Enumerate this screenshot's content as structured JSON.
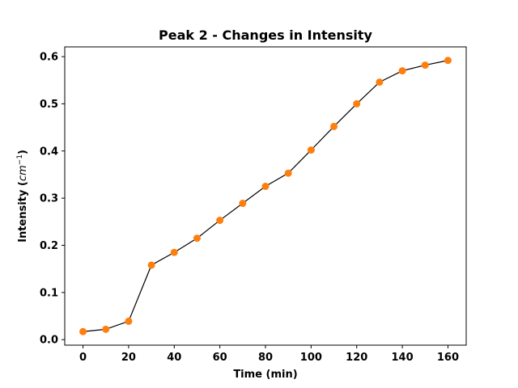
{
  "chart_data": {
    "type": "line",
    "title": "Peak 2 - Changes in Intensity",
    "xlabel": "Time (min)",
    "ylabel_main": "Intensity (",
    "ylabel_unit": "cm",
    "ylabel_exp": "−1",
    "ylabel_close": ")",
    "x": [
      0,
      10,
      20,
      30,
      40,
      50,
      60,
      70,
      80,
      90,
      100,
      110,
      120,
      130,
      140,
      150,
      160
    ],
    "series": [
      {
        "values": [
          0.017,
          0.022,
          0.039,
          0.158,
          0.185,
          0.215,
          0.253,
          0.289,
          0.325,
          0.353,
          0.402,
          0.452,
          0.5,
          0.546,
          0.57,
          0.582,
          0.592
        ],
        "line_color": "#000000",
        "marker_color": "#ff7f0e"
      }
    ],
    "xlim": [
      -8.0,
      168.0
    ],
    "ylim": [
      -0.0117,
      0.6207
    ],
    "xticks": [
      0,
      20,
      40,
      60,
      80,
      100,
      120,
      140,
      160
    ],
    "yticks": [
      0.0,
      0.1,
      0.2,
      0.3,
      0.4,
      0.5,
      0.6
    ],
    "xtick_labels": [
      "0",
      "20",
      "40",
      "60",
      "80",
      "100",
      "120",
      "140",
      "160"
    ],
    "ytick_labels": [
      "0.0",
      "0.1",
      "0.2",
      "0.3",
      "0.4",
      "0.5",
      "0.6"
    ],
    "grid": false,
    "legend": false
  }
}
